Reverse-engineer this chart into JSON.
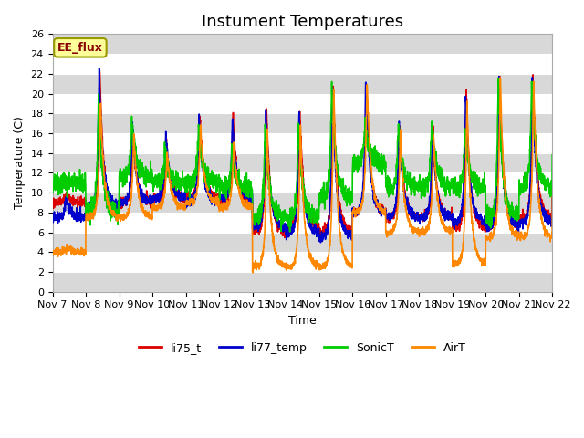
{
  "title": "Instument Temperatures",
  "xlabel": "Time",
  "ylabel": "Temperature (C)",
  "ylim": [
    0,
    26
  ],
  "xlim_days": [
    0,
    15
  ],
  "annotation": "EE_flux",
  "series_names": [
    "li75_t",
    "li77_temp",
    "SonicT",
    "AirT"
  ],
  "series_colors": [
    "#dd0000",
    "#0000cc",
    "#00cc00",
    "#ff8800"
  ],
  "background_color": "#ffffff",
  "band_color": "#d8d8d8",
  "xtick_labels": [
    "Nov 7",
    "Nov 8",
    "Nov 9",
    "Nov 10",
    "Nov 11",
    "Nov 12",
    "Nov 13",
    "Nov 14",
    "Nov 15",
    "Nov 16",
    "Nov 17",
    "Nov 18",
    "Nov 19",
    "Nov 20",
    "Nov 21",
    "Nov 22"
  ],
  "xtick_positions": [
    0,
    1,
    2,
    3,
    4,
    5,
    6,
    7,
    8,
    9,
    10,
    11,
    12,
    13,
    14,
    15
  ],
  "ytick_labels": [
    "0",
    "2",
    "4",
    "6",
    "8",
    "10",
    "12",
    "14",
    "16",
    "18",
    "20",
    "22",
    "24",
    "26"
  ],
  "ytick_positions": [
    0,
    2,
    4,
    6,
    8,
    10,
    12,
    14,
    16,
    18,
    20,
    22,
    24,
    26
  ],
  "title_fontsize": 13,
  "axis_label_fontsize": 9,
  "tick_fontsize": 8,
  "legend_fontsize": 9,
  "linewidth": 1.2,
  "figsize": [
    6.4,
    4.8
  ],
  "dpi": 100
}
